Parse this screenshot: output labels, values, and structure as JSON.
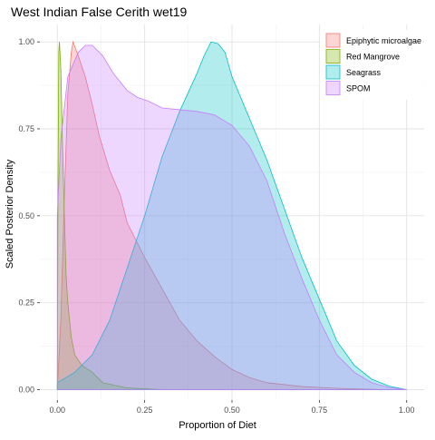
{
  "chart_data": {
    "type": "area",
    "title": "West Indian False Cerith wet19",
    "xlabel": "Proportion of Diet",
    "ylabel": "Scaled Posterior Density",
    "xlim": [
      -0.05,
      1.05
    ],
    "ylim": [
      -0.03,
      1.05
    ],
    "x_ticks": [
      0.0,
      0.25,
      0.5,
      0.75,
      1.0
    ],
    "x_tick_labels": [
      "0.00",
      "0.25",
      "0.50",
      "0.75",
      "1.00"
    ],
    "y_ticks": [
      0.0,
      0.25,
      0.5,
      0.75,
      1.0
    ],
    "y_tick_labels": [
      "0.00",
      "0.25",
      "0.50",
      "0.75",
      "1.00"
    ],
    "grid": true,
    "legend_position": "top-right",
    "series": [
      {
        "name": "Epiphytic microalgae",
        "fill": "#F8766D",
        "points": [
          [
            0.0,
            0.0
          ],
          [
            0.01,
            0.2
          ],
          [
            0.02,
            0.55
          ],
          [
            0.03,
            0.85
          ],
          [
            0.04,
            0.97
          ],
          [
            0.045,
            1.0
          ],
          [
            0.06,
            0.96
          ],
          [
            0.08,
            0.9
          ],
          [
            0.1,
            0.82
          ],
          [
            0.12,
            0.73
          ],
          [
            0.15,
            0.63
          ],
          [
            0.18,
            0.56
          ],
          [
            0.2,
            0.48
          ],
          [
            0.25,
            0.38
          ],
          [
            0.3,
            0.29
          ],
          [
            0.35,
            0.2
          ],
          [
            0.4,
            0.14
          ],
          [
            0.45,
            0.095
          ],
          [
            0.5,
            0.058
          ],
          [
            0.55,
            0.035
          ],
          [
            0.6,
            0.02
          ],
          [
            0.7,
            0.009
          ],
          [
            0.8,
            0.004
          ],
          [
            0.9,
            0.001
          ],
          [
            0.95,
            0.0
          ]
        ]
      },
      {
        "name": "Red Mangrove",
        "fill": "#7CAE00",
        "points": [
          [
            0.0,
            0.0
          ],
          [
            0.002,
            0.6
          ],
          [
            0.004,
            0.97
          ],
          [
            0.006,
            1.0
          ],
          [
            0.01,
            0.92
          ],
          [
            0.015,
            0.7
          ],
          [
            0.02,
            0.5
          ],
          [
            0.025,
            0.33
          ],
          [
            0.03,
            0.25
          ],
          [
            0.04,
            0.15
          ],
          [
            0.05,
            0.1
          ],
          [
            0.07,
            0.07
          ],
          [
            0.1,
            0.05
          ],
          [
            0.13,
            0.02
          ],
          [
            0.2,
            0.005
          ],
          [
            0.3,
            0.0
          ]
        ]
      },
      {
        "name": "Seagrass",
        "fill": "#00BFC4",
        "points": [
          [
            0.0,
            0.02
          ],
          [
            0.05,
            0.05
          ],
          [
            0.1,
            0.1
          ],
          [
            0.15,
            0.2
          ],
          [
            0.2,
            0.35
          ],
          [
            0.25,
            0.5
          ],
          [
            0.3,
            0.67
          ],
          [
            0.35,
            0.8
          ],
          [
            0.4,
            0.91
          ],
          [
            0.42,
            0.96
          ],
          [
            0.44,
            1.0
          ],
          [
            0.46,
            0.995
          ],
          [
            0.48,
            0.97
          ],
          [
            0.5,
            0.9
          ],
          [
            0.55,
            0.78
          ],
          [
            0.6,
            0.66
          ],
          [
            0.65,
            0.52
          ],
          [
            0.7,
            0.38
          ],
          [
            0.75,
            0.26
          ],
          [
            0.8,
            0.14
          ],
          [
            0.85,
            0.07
          ],
          [
            0.9,
            0.03
          ],
          [
            0.95,
            0.01
          ],
          [
            1.0,
            0.0
          ]
        ]
      },
      {
        "name": "SPOM",
        "fill": "#C77CFF",
        "points": [
          [
            0.0,
            0.5
          ],
          [
            0.01,
            0.72
          ],
          [
            0.03,
            0.9
          ],
          [
            0.06,
            0.97
          ],
          [
            0.08,
            0.99
          ],
          [
            0.1,
            0.99
          ],
          [
            0.13,
            0.96
          ],
          [
            0.16,
            0.91
          ],
          [
            0.2,
            0.86
          ],
          [
            0.23,
            0.84
          ],
          [
            0.26,
            0.83
          ],
          [
            0.3,
            0.81
          ],
          [
            0.35,
            0.805
          ],
          [
            0.4,
            0.8
          ],
          [
            0.45,
            0.79
          ],
          [
            0.5,
            0.76
          ],
          [
            0.55,
            0.7
          ],
          [
            0.6,
            0.6
          ],
          [
            0.65,
            0.45
          ],
          [
            0.7,
            0.32
          ],
          [
            0.75,
            0.2
          ],
          [
            0.8,
            0.1
          ],
          [
            0.85,
            0.05
          ],
          [
            0.9,
            0.02
          ],
          [
            0.95,
            0.006
          ],
          [
            1.0,
            0.0
          ]
        ]
      }
    ]
  }
}
